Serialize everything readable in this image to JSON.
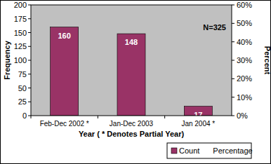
{
  "chart_data": {
    "type": "bar",
    "categories": [
      "Feb-Dec 2002 *",
      "Jan-Dec 2003",
      "Jan 2004 *"
    ],
    "series": [
      {
        "name": "Count",
        "color": "#993366",
        "values": [
          160,
          148,
          17
        ]
      },
      {
        "name": "Percentage",
        "axis": "y2",
        "values": [
          null,
          null,
          null
        ]
      }
    ],
    "y_label": "Frequency",
    "y2_label": "Percent",
    "x_label": "Year ( * Denotes Partial Year)",
    "annotation": "N=325",
    "ylim": [
      0,
      200
    ],
    "yticks": [
      0,
      25,
      50,
      75,
      100,
      125,
      150,
      175,
      200
    ],
    "y2lim": [
      0,
      60
    ],
    "y2ticks": [
      {
        "value": 0,
        "label": "0%"
      },
      {
        "value": 10,
        "label": "10%"
      },
      {
        "value": 20,
        "label": "20%"
      },
      {
        "value": 30,
        "label": "30%"
      },
      {
        "value": 40,
        "label": "40%"
      },
      {
        "value": 50,
        "label": "50%"
      },
      {
        "value": 60,
        "label": "60%"
      }
    ],
    "grid": false,
    "data_labels": true,
    "legend": "bottom-right"
  }
}
